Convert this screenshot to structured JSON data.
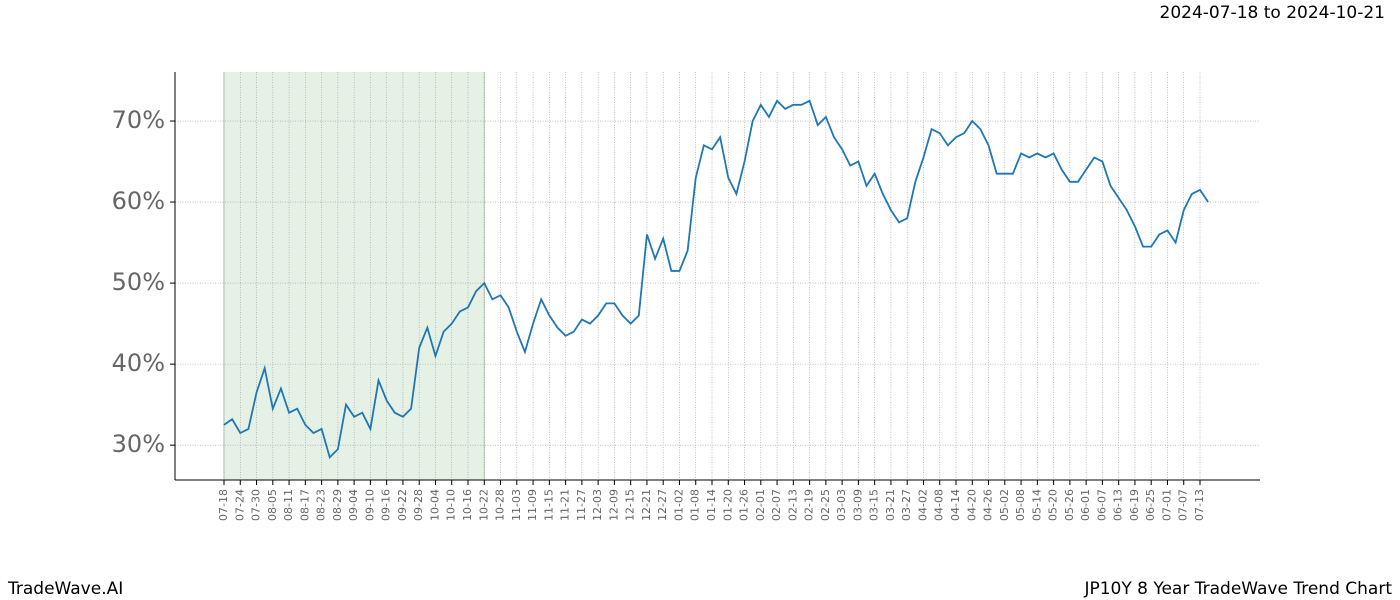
{
  "chart_data": {
    "type": "line",
    "title": "JP10Y 8 Year TradeWave Trend Chart",
    "subtitle": "2024-07-18 to 2024-10-21",
    "watermark": "TradeWave.AI",
    "highlight_range": {
      "start": "07-18",
      "end": "10-22"
    },
    "categories": [
      "07-18",
      null,
      "07-24",
      null,
      "07-30",
      null,
      "08-05",
      null,
      "08-11",
      null,
      "08-17",
      null,
      "08-23",
      null,
      "08-29",
      null,
      "09-04",
      null,
      "09-10",
      null,
      "09-16",
      null,
      "09-22",
      null,
      "09-28",
      null,
      "10-04",
      null,
      "10-10",
      null,
      "10-16",
      null,
      "10-22",
      null,
      "10-28",
      null,
      "11-03",
      null,
      "11-09",
      null,
      "11-15",
      null,
      "11-21",
      null,
      "11-27",
      null,
      "12-03",
      null,
      "12-09",
      null,
      "12-15",
      null,
      "12-21",
      null,
      "12-27",
      null,
      "01-02",
      null,
      "01-08",
      null,
      "01-14",
      null,
      "01-20",
      null,
      "01-26",
      null,
      "02-01",
      null,
      "02-07",
      null,
      "02-13",
      null,
      "02-19",
      null,
      "02-25",
      null,
      "03-03",
      null,
      "03-09",
      null,
      "03-15",
      null,
      "03-21",
      null,
      "03-27",
      null,
      "04-02",
      null,
      "04-08",
      null,
      "04-14",
      null,
      "04-20",
      null,
      "04-26",
      null,
      "05-02",
      null,
      "05-08",
      null,
      "05-14",
      null,
      "05-20",
      null,
      "05-26",
      null,
      "06-01",
      null,
      "06-07",
      null,
      "06-13",
      null,
      "06-19",
      null,
      "06-25",
      null,
      "07-01",
      null,
      "07-07",
      null,
      "07-13",
      null
    ],
    "series": [
      {
        "name": "JP10Y",
        "color": "#1f77b4",
        "values": [
          32.5,
          33.2,
          31.5,
          32.0,
          36.5,
          39.5,
          34.5,
          37.0,
          34.0,
          34.5,
          32.5,
          31.5,
          32.0,
          28.5,
          29.5,
          35.0,
          33.5,
          34.0,
          32.0,
          38.0,
          35.5,
          34.0,
          33.5,
          34.5,
          42.0,
          44.5,
          41.0,
          44.0,
          45.0,
          46.5,
          47.0,
          49.0,
          50.0,
          48.0,
          48.5,
          47.0,
          44.0,
          41.5,
          45.0,
          48.0,
          46.0,
          44.5,
          43.5,
          44.0,
          45.5,
          45.0,
          46.0,
          47.5,
          47.5,
          46.0,
          45.0,
          46.0,
          56.0,
          53.0,
          55.5,
          51.5,
          51.5,
          54.0,
          63.0,
          67.0,
          66.5,
          68.0,
          63.0,
          61.0,
          65.0,
          70.0,
          72.0,
          70.5,
          72.5,
          71.5,
          72.0,
          72.0,
          72.5,
          69.5,
          70.5,
          68.0,
          66.5,
          64.5,
          65.0,
          62.0,
          63.5,
          61.0,
          59.0,
          57.5,
          58.0,
          62.5,
          65.5,
          69.0,
          68.5,
          67.0,
          68.0,
          68.5,
          70.0,
          69.0,
          67.0,
          63.5,
          63.5,
          63.5,
          66.0,
          65.5,
          66.0,
          65.5,
          66.0,
          64.0,
          62.5,
          62.5,
          64.0,
          65.5,
          65.0,
          62.0,
          60.5,
          59.0,
          57.0,
          54.5,
          54.5,
          56.0,
          56.5,
          55.0,
          59.0,
          61.0,
          61.5,
          60.0
        ]
      }
    ],
    "ylim": [
      25.7,
      76.05
    ],
    "yticks": [
      {
        "value": 30,
        "label": "30%"
      },
      {
        "value": 40,
        "label": "40%"
      },
      {
        "value": 50,
        "label": "50%"
      },
      {
        "value": 60,
        "label": "60%"
      },
      {
        "value": 70,
        "label": "70%"
      }
    ],
    "grid": true
  }
}
